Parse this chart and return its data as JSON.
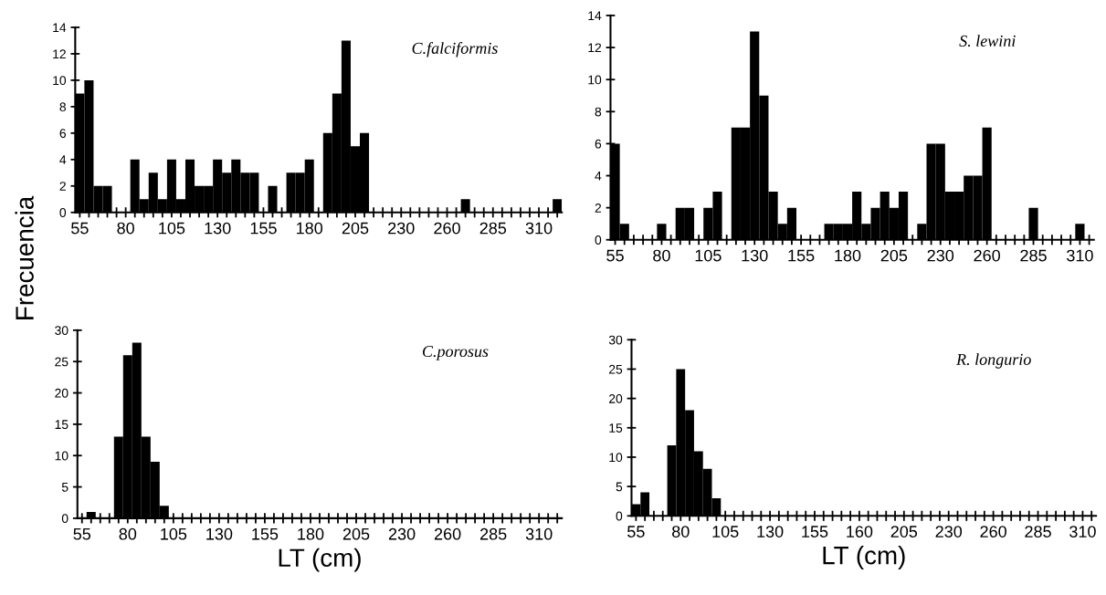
{
  "chart_data": [
    {
      "type": "bar",
      "ylabel": "Frecuencia",
      "annotations": [
        "C.falciformis"
      ],
      "color": "#000000",
      "categories": [
        "55",
        null,
        null,
        null,
        null,
        "80",
        null,
        null,
        null,
        null,
        "105",
        null,
        null,
        null,
        null,
        "130",
        null,
        null,
        null,
        null,
        "155",
        null,
        null,
        null,
        null,
        "180",
        null,
        null,
        null,
        null,
        "205",
        null,
        null,
        null,
        null,
        "230",
        null,
        null,
        null,
        null,
        "260",
        null,
        null,
        null,
        null,
        "285",
        null,
        null,
        null,
        null,
        "310",
        null,
        null
      ],
      "values": [
        9,
        10,
        2,
        2,
        0,
        0,
        4,
        1,
        3,
        1,
        4,
        1,
        4,
        2,
        2,
        4,
        3,
        4,
        3,
        3,
        0,
        2,
        0,
        3,
        3,
        4,
        0,
        6,
        9,
        13,
        5,
        6,
        0,
        0,
        0,
        0,
        0,
        0,
        0,
        0,
        0,
        0,
        1,
        0,
        0,
        0,
        0,
        0,
        0,
        0,
        0,
        0,
        1
      ],
      "ylim": [
        0,
        14
      ],
      "yticks": [
        0,
        2,
        4,
        6,
        8,
        10,
        12,
        14
      ]
    },
    {
      "type": "bar",
      "annotations": [
        "S. lewini"
      ],
      "color": "#000000",
      "categories": [
        "55",
        null,
        null,
        null,
        null,
        "80",
        null,
        null,
        null,
        null,
        "105",
        null,
        null,
        null,
        null,
        "130",
        null,
        null,
        null,
        null,
        "155",
        null,
        null,
        null,
        null,
        "180",
        null,
        null,
        null,
        null,
        "205",
        null,
        null,
        null,
        null,
        "230",
        null,
        null,
        null,
        null,
        "260",
        null,
        null,
        null,
        null,
        "285",
        null,
        null,
        null,
        null,
        "310",
        null
      ],
      "values": [
        6,
        1,
        0,
        0,
        0,
        1,
        0,
        2,
        2,
        0,
        2,
        3,
        0,
        7,
        7,
        13,
        9,
        3,
        1,
        2,
        0,
        0,
        0,
        1,
        1,
        1,
        3,
        1,
        2,
        3,
        2,
        3,
        0,
        1,
        6,
        6,
        3,
        3,
        4,
        4,
        7,
        0,
        0,
        0,
        0,
        2,
        0,
        0,
        0,
        0,
        1,
        0
      ],
      "ylim": [
        0,
        14
      ],
      "yticks": [
        0,
        2,
        4,
        6,
        8,
        10,
        12,
        14
      ]
    },
    {
      "type": "bar",
      "xlabel": "LT (cm)",
      "annotations": [
        "C.porosus"
      ],
      "color": "#000000",
      "categories": [
        "55",
        null,
        null,
        null,
        null,
        "80",
        null,
        null,
        null,
        null,
        "105",
        null,
        null,
        null,
        null,
        "130",
        null,
        null,
        null,
        null,
        "155",
        null,
        null,
        null,
        null,
        "180",
        null,
        null,
        null,
        null,
        "205",
        null,
        null,
        null,
        null,
        "230",
        null,
        null,
        null,
        null,
        "260",
        null,
        null,
        null,
        null,
        "285",
        null,
        null,
        null,
        null,
        "310",
        null,
        null
      ],
      "values": [
        0,
        1,
        0,
        0,
        13,
        26,
        28,
        13,
        9,
        2,
        0,
        0,
        0,
        0,
        0,
        0,
        0,
        0,
        0,
        0,
        0,
        0,
        0,
        0,
        0,
        0,
        0,
        0,
        0,
        0,
        0,
        0,
        0,
        0,
        0,
        0,
        0,
        0,
        0,
        0,
        0,
        0,
        0,
        0,
        0,
        0,
        0,
        0,
        0,
        0,
        0,
        0,
        0
      ],
      "ylim": [
        0,
        30
      ],
      "yticks": [
        0,
        5,
        10,
        15,
        20,
        25,
        30
      ]
    },
    {
      "type": "bar",
      "xlabel": "LT (cm)",
      "annotations": [
        "R. longurio"
      ],
      "color": "#000000",
      "categories": [
        "55",
        null,
        null,
        null,
        null,
        "80",
        null,
        null,
        null,
        null,
        "105",
        null,
        null,
        null,
        null,
        "130",
        null,
        null,
        null,
        null,
        "155",
        null,
        null,
        null,
        null,
        "160",
        null,
        null,
        null,
        null,
        "205",
        null,
        null,
        null,
        null,
        "230",
        null,
        null,
        null,
        null,
        "260",
        null,
        null,
        null,
        null,
        "285",
        null,
        null,
        null,
        null,
        "310",
        null
      ],
      "values": [
        2,
        4,
        0,
        0,
        12,
        25,
        18,
        11,
        8,
        3,
        0,
        0,
        0,
        0,
        0,
        0,
        0,
        0,
        0,
        0,
        0,
        0,
        0,
        0,
        0,
        0,
        0,
        0,
        0,
        0,
        0,
        0,
        0,
        0,
        0,
        0,
        0,
        0,
        0,
        0,
        0,
        0,
        0,
        0,
        0,
        0,
        0,
        0,
        0,
        0,
        0,
        0
      ],
      "ylim": [
        0,
        30
      ],
      "yticks": [
        0,
        5,
        10,
        15,
        20,
        25,
        30
      ]
    }
  ]
}
